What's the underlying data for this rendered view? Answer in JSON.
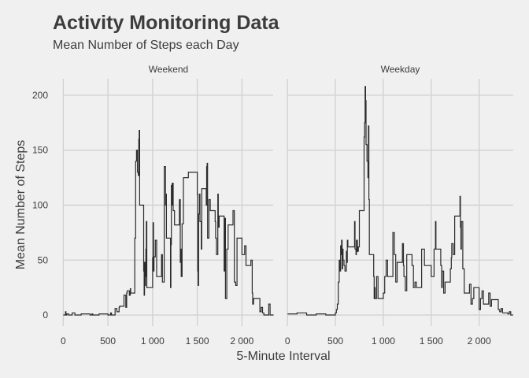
{
  "chart_data": {
    "type": "line",
    "title": "Activity Monitoring Data",
    "subtitle": "Mean Number of Steps each Day",
    "xlabel": "5-Minute Interval",
    "ylabel": "Mean Number of Steps",
    "xlim": [
      -100,
      2455
    ],
    "ylim": [
      -10,
      215
    ],
    "xticks": [
      0,
      500,
      1000,
      1500,
      2000
    ],
    "xtick_labels": [
      "0",
      "500",
      "1 000",
      "1 500",
      "2 000"
    ],
    "yticks": [
      0,
      50,
      100,
      150,
      200
    ],
    "ytick_labels": [
      "0",
      "50",
      "100",
      "150",
      "200"
    ],
    "grid": true,
    "line_color": "#2b2b2b",
    "background": "#f0f0f0",
    "facets": [
      {
        "label": "Weekend",
        "x": [
          0,
          25,
          30,
          40,
          60,
          100,
          130,
          200,
          300,
          320,
          330,
          400,
          500,
          530,
          540,
          580,
          600,
          625,
          630,
          680,
          700,
          710,
          715,
          740,
          750,
          755,
          800,
          810,
          820,
          830,
          840,
          845,
          850,
          855,
          900,
          905,
          910,
          915,
          920,
          925,
          930,
          935,
          1000,
          1005,
          1010,
          1015,
          1030,
          1045,
          1100,
          1110,
          1130,
          1145,
          1150,
          1155,
          1200,
          1205,
          1210,
          1215,
          1220,
          1230,
          1245,
          1300,
          1310,
          1315,
          1320,
          1330,
          1345,
          1400,
          1500,
          1505,
          1510,
          1515,
          1525,
          1530,
          1545,
          1550,
          1600,
          1605,
          1610,
          1615,
          1630,
          1645,
          1700,
          1705,
          1715,
          1730,
          1735,
          1745,
          1800,
          1805,
          1815,
          1830,
          1845,
          1900,
          1915,
          1930,
          1945,
          2000,
          2030,
          2045,
          2100,
          2115,
          2120,
          2130,
          2200,
          2215,
          2230,
          2245,
          2300,
          2315,
          2330,
          2355
        ],
        "y": [
          0,
          3,
          0,
          1,
          0,
          2,
          0,
          1,
          0,
          1,
          0,
          1,
          0,
          2,
          0,
          6,
          3,
          7,
          8,
          18,
          7,
          20,
          22,
          18,
          24,
          20,
          70,
          140,
          150,
          130,
          127,
          160,
          168,
          100,
          40,
          18,
          48,
          27,
          35,
          60,
          85,
          25,
          52,
          84,
          40,
          53,
          68,
          35,
          55,
          30,
          135,
          100,
          110,
          70,
          25,
          64,
          118,
          100,
          120,
          95,
          82,
          105,
          48,
          60,
          35,
          83,
          125,
          130,
          110,
          40,
          27,
          92,
          110,
          85,
          60,
          115,
          100,
          135,
          138,
          70,
          105,
          95,
          85,
          70,
          55,
          110,
          80,
          90,
          40,
          88,
          15,
          60,
          82,
          95,
          30,
          27,
          70,
          55,
          63,
          45,
          50,
          20,
          10,
          15,
          3,
          7,
          2,
          0,
          10,
          0,
          0,
          0
        ]
      },
      {
        "label": "Weekday",
        "x": [
          0,
          100,
          200,
          300,
          400,
          500,
          510,
          520,
          530,
          540,
          550,
          555,
          560,
          565,
          570,
          575,
          580,
          590,
          600,
          615,
          620,
          625,
          630,
          700,
          705,
          715,
          720,
          730,
          740,
          750,
          800,
          805,
          810,
          815,
          820,
          830,
          840,
          845,
          850,
          855,
          900,
          905,
          910,
          915,
          930,
          945,
          1000,
          1015,
          1030,
          1045,
          1100,
          1115,
          1130,
          1145,
          1200,
          1210,
          1215,
          1230,
          1245,
          1300,
          1315,
          1330,
          1345,
          1400,
          1430,
          1500,
          1530,
          1545,
          1550,
          1600,
          1610,
          1615,
          1630,
          1645,
          1700,
          1710,
          1715,
          1730,
          1745,
          1800,
          1805,
          1810,
          1815,
          1830,
          1845,
          1900,
          1915,
          1930,
          1945,
          2000,
          2015,
          2030,
          2045,
          2100,
          2115,
          2130,
          2200,
          2215,
          2230,
          2245,
          2300,
          2315,
          2330,
          2355
        ],
        "y": [
          1,
          2,
          0,
          1,
          0,
          2,
          5,
          10,
          30,
          50,
          40,
          63,
          55,
          68,
          42,
          60,
          50,
          45,
          40,
          58,
          48,
          68,
          62,
          85,
          60,
          55,
          68,
          58,
          62,
          95,
          162,
          175,
          208,
          195,
          155,
          140,
          125,
          172,
          105,
          55,
          35,
          15,
          25,
          15,
          35,
          15,
          20,
          35,
          50,
          35,
          75,
          55,
          30,
          48,
          65,
          45,
          35,
          22,
          55,
          45,
          25,
          30,
          25,
          60,
          45,
          35,
          60,
          85,
          60,
          45,
          25,
          40,
          20,
          30,
          42,
          52,
          65,
          55,
          90,
          108,
          80,
          60,
          85,
          42,
          20,
          28,
          10,
          15,
          25,
          5,
          15,
          22,
          10,
          20,
          8,
          14,
          5,
          3,
          6,
          2,
          1,
          3,
          0,
          0
        ]
      }
    ]
  }
}
